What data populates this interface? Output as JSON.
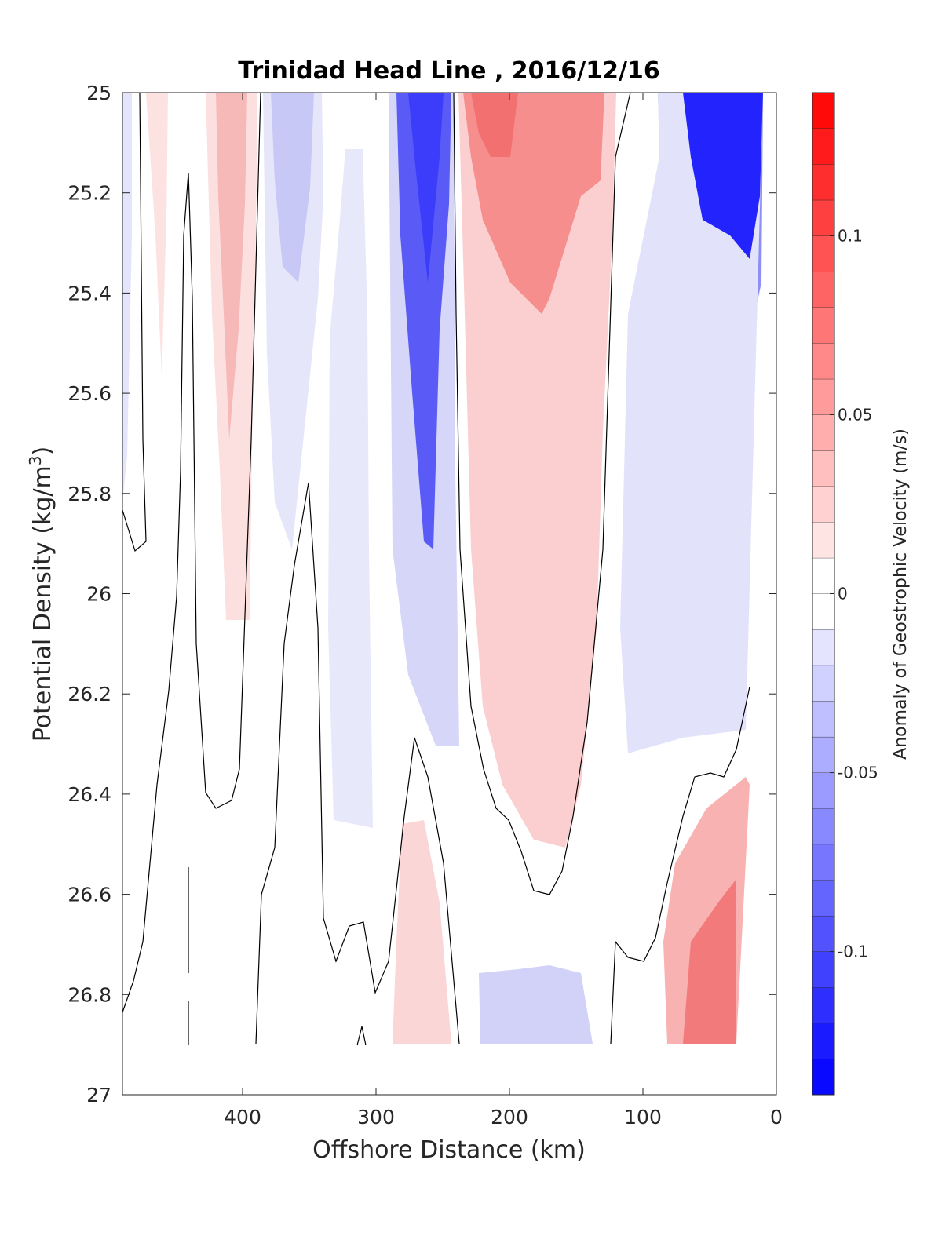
{
  "chart_data": {
    "type": "heatmap",
    "subtype": "filled-contour",
    "title": "Trinidad Head Line , 2016/12/16",
    "xlabel": "Offshore Distance (km)",
    "ylabel_main": "Potential Density (kg/m",
    "ylabel_sup": "3",
    "ylabel_end": ")",
    "xlim": [
      490,
      0
    ],
    "x_direction": "reversed",
    "ylim": [
      25,
      27
    ],
    "y_direction": "reversed",
    "xticks": [
      400,
      300,
      200,
      100,
      0
    ],
    "yticks": [
      25,
      25.2,
      25.4,
      25.6,
      25.8,
      26,
      26.2,
      26.4,
      26.6,
      26.8,
      27
    ],
    "ytick_labels": [
      "25",
      "25.2",
      "25.4",
      "25.6",
      "25.8",
      "26",
      "26.2",
      "26.4",
      "26.6",
      "26.8",
      "27"
    ],
    "grid": false,
    "colorbar": {
      "label": "Anomaly of Geostrophic Velocity (m/s)",
      "range": [
        -0.14,
        0.14
      ],
      "ticks": [
        0.1,
        0.05,
        0,
        -0.05,
        -0.1
      ],
      "tick_labels": [
        "0.1",
        "0.05",
        "0",
        "-0.05",
        "-0.1"
      ],
      "levels": 28,
      "low_color": "#0000ff",
      "mid_color": "#ffffff",
      "high_color": "#ff0000"
    },
    "data_bottom_density": 26.9,
    "zero_contour": true,
    "bands": [
      {
        "x": [
          490,
          480
        ],
        "anomaly": -0.01
      },
      {
        "x": [
          465,
          450
        ],
        "anomaly": 0.015
      },
      {
        "x": [
          420,
          395
        ],
        "anomaly": 0.03
      },
      {
        "x": [
          375,
          345
        ],
        "anomaly": -0.03
      },
      {
        "x": [
          335,
          300
        ],
        "anomaly": -0.015
      },
      {
        "x": [
          285,
          245
        ],
        "anomaly": -0.1
      },
      {
        "x": [
          230,
          140
        ],
        "anomaly": 0.07
      },
      {
        "x": [
          90,
          15
        ],
        "anomaly": -0.12
      },
      {
        "x": [
          70,
          30
        ],
        "anomaly": 0.06
      },
      {
        "x": [
          290,
          250
        ],
        "anomaly": 0.03
      },
      {
        "x": [
          230,
          140
        ],
        "anomaly": -0.03
      }
    ]
  }
}
